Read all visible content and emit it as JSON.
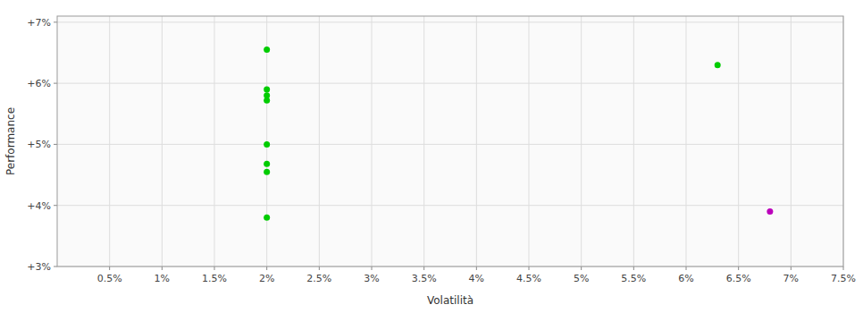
{
  "chart_data": {
    "type": "scatter",
    "xlabel": "Volatilità",
    "ylabel": "Performance",
    "xlim": [
      0.0,
      0.075
    ],
    "ylim": [
      0.03,
      0.071
    ],
    "xticks": [
      {
        "value": 0.005,
        "label": "0.5%"
      },
      {
        "value": 0.01,
        "label": "1%"
      },
      {
        "value": 0.015,
        "label": "1.5%"
      },
      {
        "value": 0.02,
        "label": "2%"
      },
      {
        "value": 0.025,
        "label": "2.5%"
      },
      {
        "value": 0.03,
        "label": "3%"
      },
      {
        "value": 0.035,
        "label": "3.5%"
      },
      {
        "value": 0.04,
        "label": "4%"
      },
      {
        "value": 0.045,
        "label": "4.5%"
      },
      {
        "value": 0.05,
        "label": "5%"
      },
      {
        "value": 0.055,
        "label": "5.5%"
      },
      {
        "value": 0.06,
        "label": "6%"
      },
      {
        "value": 0.065,
        "label": "6.5%"
      },
      {
        "value": 0.07,
        "label": "7%"
      },
      {
        "value": 0.075,
        "label": "7.5%"
      }
    ],
    "yticks": [
      {
        "value": 0.03,
        "label": "+3%"
      },
      {
        "value": 0.04,
        "label": "+4%"
      },
      {
        "value": 0.05,
        "label": "+5%"
      },
      {
        "value": 0.06,
        "label": "+6%"
      },
      {
        "value": 0.07,
        "label": "+7%"
      }
    ],
    "grid": true,
    "series": [
      {
        "color": "#00cc00",
        "x": [
          0.02,
          0.02,
          0.02,
          0.02,
          0.02,
          0.02,
          0.02,
          0.02,
          0.063
        ],
        "values": [
          0.0655,
          0.059,
          0.058,
          0.0572,
          0.05,
          0.0468,
          0.0455,
          0.038,
          0.063
        ]
      },
      {
        "color": "#bb00bb",
        "x": [
          0.068
        ],
        "values": [
          0.039
        ]
      }
    ]
  }
}
